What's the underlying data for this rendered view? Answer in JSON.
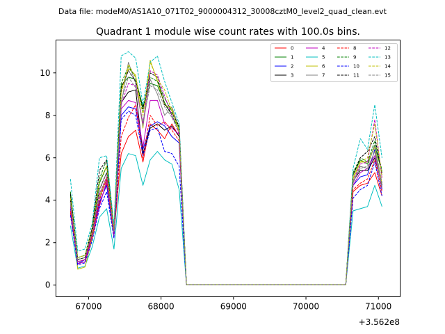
{
  "page": {
    "suptitle": "Data file: modeM0/AS1A10_071T02_9000004312_30008cztM0_level2_quad_clean.evt",
    "title": "Quadrant 1 module wise count rates with 100.0s bins.",
    "x_offset_label": "+3.562e8"
  },
  "chart_data": {
    "type": "line",
    "title": "Quadrant 1 module wise count rates with 100.0s bins.",
    "xlabel": "",
    "ylabel": "",
    "x_offset": 356200000,
    "xlim": [
      66550,
      71300
    ],
    "ylim": [
      -0.55,
      11.55
    ],
    "xticks": [
      67000,
      68000,
      69000,
      70000,
      71000
    ],
    "xtick_labels": [
      "67000",
      "68000",
      "69000",
      "70000",
      "71000"
    ],
    "yticks": [
      0,
      2,
      4,
      6,
      8,
      10
    ],
    "ytick_labels": [
      "0",
      "2",
      "4",
      "6",
      "8",
      "10"
    ],
    "grid": false,
    "legend_position": "top-right",
    "x": [
      66750,
      66850,
      66950,
      67050,
      67150,
      67250,
      67350,
      67450,
      67550,
      67650,
      67750,
      67850,
      67950,
      68050,
      68150,
      68250,
      68350,
      68450,
      68550,
      68650,
      68750,
      68850,
      68950,
      69050,
      69150,
      69250,
      69350,
      69450,
      69550,
      69650,
      69750,
      69850,
      69950,
      70050,
      70150,
      70250,
      70350,
      70450,
      70550,
      70650,
      70750,
      70850,
      70950,
      71050
    ],
    "series": [
      {
        "name": "0",
        "color": "#ff0000",
        "dash": false,
        "values": [
          3.4,
          1.0,
          1.1,
          2.2,
          3.8,
          4.8,
          2.4,
          6.2,
          7.0,
          7.3,
          5.8,
          7.6,
          7.3,
          6.9,
          7.6,
          7.0,
          0.02,
          0.02,
          0.02,
          0.02,
          0.02,
          0.02,
          0.02,
          0.02,
          0.02,
          0.02,
          0.02,
          0.02,
          0.02,
          0.02,
          0.02,
          0.02,
          0.02,
          0.02,
          0.02,
          0.02,
          0.02,
          0.02,
          0.02,
          4.4,
          4.7,
          4.8,
          5.3,
          4.2
        ]
      },
      {
        "name": "1",
        "color": "#008000",
        "dash": false,
        "values": [
          4.2,
          1.2,
          1.3,
          2.6,
          4.8,
          5.6,
          2.6,
          9.4,
          9.8,
          9.7,
          8.4,
          9.5,
          9.4,
          8.6,
          8.0,
          7.3,
          0.02,
          0.02,
          0.02,
          0.02,
          0.02,
          0.02,
          0.02,
          0.02,
          0.02,
          0.02,
          0.02,
          0.02,
          0.02,
          0.02,
          0.02,
          0.02,
          0.02,
          0.02,
          0.02,
          0.02,
          0.02,
          0.02,
          0.02,
          5.2,
          5.9,
          5.7,
          6.6,
          5.3
        ]
      },
      {
        "name": "2",
        "color": "#0000ff",
        "dash": false,
        "values": [
          3.6,
          1.0,
          1.2,
          2.3,
          3.9,
          4.7,
          2.3,
          8.0,
          8.4,
          8.3,
          6.4,
          7.5,
          7.7,
          7.5,
          7.0,
          6.7,
          0.02,
          0.02,
          0.02,
          0.02,
          0.02,
          0.02,
          0.02,
          0.02,
          0.02,
          0.02,
          0.02,
          0.02,
          0.02,
          0.02,
          0.02,
          0.02,
          0.02,
          0.02,
          0.02,
          0.02,
          0.02,
          0.02,
          0.02,
          4.7,
          5.1,
          5.2,
          6.4,
          4.5
        ]
      },
      {
        "name": "3",
        "color": "#000000",
        "dash": false,
        "values": [
          4.0,
          1.1,
          1.2,
          2.5,
          4.5,
          5.3,
          2.5,
          8.6,
          9.1,
          9.2,
          6.2,
          7.4,
          7.6,
          7.3,
          7.5,
          7.0,
          0.02,
          0.02,
          0.02,
          0.02,
          0.02,
          0.02,
          0.02,
          0.02,
          0.02,
          0.02,
          0.02,
          0.02,
          0.02,
          0.02,
          0.02,
          0.02,
          0.02,
          0.02,
          0.02,
          0.02,
          0.02,
          0.02,
          0.02,
          4.9,
          5.4,
          5.4,
          6.0,
          4.7
        ]
      },
      {
        "name": "4",
        "color": "#bf00bf",
        "dash": false,
        "values": [
          3.8,
          1.0,
          1.1,
          2.3,
          3.7,
          4.9,
          2.4,
          8.3,
          8.7,
          8.6,
          6.5,
          8.7,
          8.7,
          7.6,
          7.4,
          7.1,
          0.02,
          0.02,
          0.02,
          0.02,
          0.02,
          0.02,
          0.02,
          0.02,
          0.02,
          0.02,
          0.02,
          0.02,
          0.02,
          0.02,
          0.02,
          0.02,
          0.02,
          0.02,
          0.02,
          0.02,
          0.02,
          0.02,
          0.02,
          4.7,
          5.3,
          5.5,
          6.1,
          4.6
        ]
      },
      {
        "name": "5",
        "color": "#00bfbf",
        "dash": false,
        "values": [
          2.8,
          0.8,
          0.9,
          1.8,
          3.2,
          3.6,
          1.7,
          5.5,
          6.2,
          6.1,
          4.7,
          5.9,
          6.3,
          5.9,
          5.7,
          4.5,
          0.02,
          0.02,
          0.02,
          0.02,
          0.02,
          0.02,
          0.02,
          0.02,
          0.02,
          0.02,
          0.02,
          0.02,
          0.02,
          0.02,
          0.02,
          0.02,
          0.02,
          0.02,
          0.02,
          0.02,
          0.02,
          0.02,
          0.02,
          3.5,
          3.6,
          3.7,
          4.7,
          3.7
        ]
      },
      {
        "name": "6",
        "color": "#bfbf00",
        "dash": false,
        "values": [
          3.9,
          0.75,
          0.85,
          2.2,
          4.2,
          5.1,
          2.4,
          9.2,
          10.2,
          9.9,
          7.4,
          10.6,
          9.6,
          8.5,
          8.3,
          7.2,
          0.02,
          0.02,
          0.02,
          0.02,
          0.02,
          0.02,
          0.02,
          0.02,
          0.02,
          0.02,
          0.02,
          0.02,
          0.02,
          0.02,
          0.02,
          0.02,
          0.02,
          0.02,
          0.02,
          0.02,
          0.02,
          0.02,
          0.02,
          5.0,
          5.8,
          5.8,
          6.5,
          4.8
        ]
      },
      {
        "name": "7",
        "color": "#808080",
        "dash": false,
        "values": [
          3.9,
          1.1,
          1.2,
          2.4,
          4.1,
          5.0,
          2.3,
          8.5,
          10.5,
          9.5,
          7.5,
          9.7,
          9.0,
          8.0,
          8.4,
          7.4,
          0.02,
          0.02,
          0.02,
          0.02,
          0.02,
          0.02,
          0.02,
          0.02,
          0.02,
          0.02,
          0.02,
          0.02,
          0.02,
          0.02,
          0.02,
          0.02,
          0.02,
          0.02,
          0.02,
          0.02,
          0.02,
          0.02,
          0.02,
          4.8,
          5.6,
          5.5,
          6.3,
          4.6
        ]
      },
      {
        "name": "8",
        "color": "#ff0000",
        "dash": true,
        "values": [
          3.5,
          1.1,
          1.2,
          2.3,
          4.0,
          5.0,
          2.3,
          7.0,
          7.9,
          8.5,
          6.0,
          8.0,
          7.5,
          7.7,
          7.3,
          6.8,
          0.02,
          0.02,
          0.02,
          0.02,
          0.02,
          0.02,
          0.02,
          0.02,
          0.02,
          0.02,
          0.02,
          0.02,
          0.02,
          0.02,
          0.02,
          0.02,
          0.02,
          0.02,
          0.02,
          0.02,
          0.02,
          0.02,
          0.02,
          4.5,
          4.8,
          5.0,
          5.9,
          4.4
        ]
      },
      {
        "name": "9",
        "color": "#008000",
        "dash": true,
        "values": [
          4.4,
          1.3,
          1.4,
          2.7,
          5.0,
          5.9,
          2.7,
          9.5,
          10.3,
          9.8,
          8.2,
          9.8,
          9.6,
          8.8,
          8.2,
          7.4,
          0.02,
          0.02,
          0.02,
          0.02,
          0.02,
          0.02,
          0.02,
          0.02,
          0.02,
          0.02,
          0.02,
          0.02,
          0.02,
          0.02,
          0.02,
          0.02,
          0.02,
          0.02,
          0.02,
          0.02,
          0.02,
          0.02,
          0.02,
          5.3,
          6.0,
          5.8,
          6.8,
          5.4
        ]
      },
      {
        "name": "10",
        "color": "#0000ff",
        "dash": true,
        "values": [
          3.3,
          0.95,
          1.05,
          2.1,
          3.6,
          4.4,
          2.2,
          7.8,
          8.2,
          8.0,
          6.1,
          7.3,
          7.4,
          6.3,
          6.2,
          5.6,
          0.02,
          0.02,
          0.02,
          0.02,
          0.02,
          0.02,
          0.02,
          0.02,
          0.02,
          0.02,
          0.02,
          0.02,
          0.02,
          0.02,
          0.02,
          0.02,
          0.02,
          0.02,
          0.02,
          0.02,
          0.02,
          0.02,
          0.02,
          4.1,
          4.5,
          4.7,
          5.8,
          4.2
        ]
      },
      {
        "name": "11",
        "color": "#000000",
        "dash": true,
        "values": [
          4.3,
          1.2,
          1.3,
          2.7,
          5.4,
          5.9,
          2.6,
          9.3,
          10.1,
          9.6,
          8.3,
          10.0,
          9.8,
          8.5,
          8.1,
          7.5,
          0.02,
          0.02,
          0.02,
          0.02,
          0.02,
          0.02,
          0.02,
          0.02,
          0.02,
          0.02,
          0.02,
          0.02,
          0.02,
          0.02,
          0.02,
          0.02,
          0.02,
          0.02,
          0.02,
          0.02,
          0.02,
          0.02,
          0.02,
          5.2,
          6.0,
          6.3,
          7.0,
          5.2
        ]
      },
      {
        "name": "12",
        "color": "#bf00bf",
        "dash": true,
        "values": [
          3.7,
          1.1,
          1.2,
          2.4,
          4.3,
          5.1,
          2.4,
          8.5,
          9.5,
          9.4,
          7.6,
          10.1,
          9.9,
          8.9,
          8.0,
          7.1,
          0.02,
          0.02,
          0.02,
          0.02,
          0.02,
          0.02,
          0.02,
          0.02,
          0.02,
          0.02,
          0.02,
          0.02,
          0.02,
          0.02,
          0.02,
          0.02,
          0.02,
          0.02,
          0.02,
          0.02,
          0.02,
          0.02,
          0.02,
          4.9,
          5.7,
          5.8,
          7.8,
          5.0
        ]
      },
      {
        "name": "13",
        "color": "#00bfbf",
        "dash": true,
        "values": [
          5.0,
          1.6,
          1.7,
          2.9,
          6.0,
          6.1,
          2.8,
          10.8,
          11.0,
          10.7,
          8.5,
          10.5,
          10.8,
          9.6,
          8.6,
          7.6,
          0.02,
          0.02,
          0.02,
          0.02,
          0.02,
          0.02,
          0.02,
          0.02,
          0.02,
          0.02,
          0.02,
          0.02,
          0.02,
          0.02,
          0.02,
          0.02,
          0.02,
          0.02,
          0.02,
          0.02,
          0.02,
          0.02,
          0.02,
          5.5,
          6.9,
          6.4,
          8.5,
          6.0
        ]
      },
      {
        "name": "14",
        "color": "#bfbf00",
        "dash": true,
        "values": [
          4.1,
          1.3,
          1.4,
          2.6,
          4.9,
          5.6,
          2.6,
          9.0,
          10.4,
          9.8,
          8.0,
          10.5,
          9.7,
          9.2,
          8.2,
          7.3,
          0.02,
          0.02,
          0.02,
          0.02,
          0.02,
          0.02,
          0.02,
          0.02,
          0.02,
          0.02,
          0.02,
          0.02,
          0.02,
          0.02,
          0.02,
          0.02,
          0.02,
          0.02,
          0.02,
          0.02,
          0.02,
          0.02,
          0.02,
          5.1,
          5.8,
          6.0,
          7.6,
          5.1
        ]
      },
      {
        "name": "15",
        "color": "#808080",
        "dash": true,
        "values": [
          3.9,
          1.2,
          1.3,
          2.5,
          4.5,
          5.3,
          2.5,
          8.7,
          9.8,
          9.3,
          7.7,
          9.4,
          9.2,
          8.4,
          7.9,
          7.2,
          0.02,
          0.02,
          0.02,
          0.02,
          0.02,
          0.02,
          0.02,
          0.02,
          0.02,
          0.02,
          0.02,
          0.02,
          0.02,
          0.02,
          0.02,
          0.02,
          0.02,
          0.02,
          0.02,
          0.02,
          0.02,
          0.02,
          0.02,
          4.9,
          5.5,
          5.6,
          6.6,
          4.8
        ]
      }
    ]
  }
}
